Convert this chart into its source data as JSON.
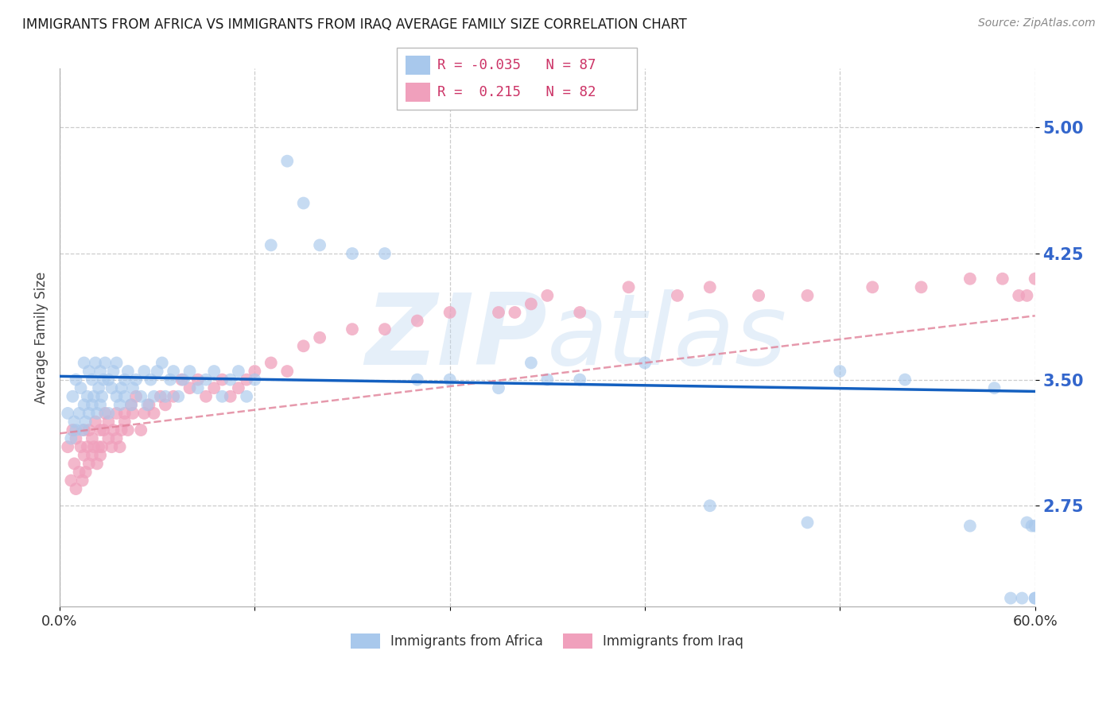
{
  "title": "IMMIGRANTS FROM AFRICA VS IMMIGRANTS FROM IRAQ AVERAGE FAMILY SIZE CORRELATION CHART",
  "source": "Source: ZipAtlas.com",
  "ylabel": "Average Family Size",
  "yticks": [
    2.75,
    3.5,
    4.25,
    5.0
  ],
  "xlim": [
    0.0,
    0.6
  ],
  "ylim": [
    2.15,
    5.35
  ],
  "africa_R": -0.035,
  "africa_N": 87,
  "iraq_R": 0.215,
  "iraq_N": 82,
  "africa_color": "#a8c8ec",
  "iraq_color": "#f0a0bc",
  "africa_line_color": "#1460c0",
  "iraq_line_color": "#e08098",
  "title_color": "#1a1a1a",
  "axis_tick_color": "#3366cc",
  "watermark": "ZIPatlas",
  "africa_x": [
    0.005,
    0.007,
    0.008,
    0.009,
    0.01,
    0.01,
    0.012,
    0.013,
    0.014,
    0.015,
    0.015,
    0.016,
    0.017,
    0.018,
    0.018,
    0.02,
    0.02,
    0.021,
    0.022,
    0.023,
    0.024,
    0.025,
    0.025,
    0.026,
    0.027,
    0.028,
    0.03,
    0.03,
    0.032,
    0.033,
    0.035,
    0.035,
    0.037,
    0.038,
    0.04,
    0.04,
    0.042,
    0.044,
    0.045,
    0.047,
    0.05,
    0.052,
    0.054,
    0.056,
    0.058,
    0.06,
    0.063,
    0.065,
    0.068,
    0.07,
    0.073,
    0.076,
    0.08,
    0.085,
    0.09,
    0.095,
    0.1,
    0.105,
    0.11,
    0.115,
    0.12,
    0.13,
    0.14,
    0.15,
    0.16,
    0.18,
    0.2,
    0.22,
    0.24,
    0.27,
    0.29,
    0.3,
    0.32,
    0.36,
    0.4,
    0.46,
    0.48,
    0.52,
    0.56,
    0.575,
    0.585,
    0.592,
    0.595,
    0.598,
    0.6,
    0.6,
    0.6
  ],
  "africa_y": [
    3.3,
    3.15,
    3.4,
    3.25,
    3.2,
    3.5,
    3.3,
    3.45,
    3.2,
    3.35,
    3.6,
    3.25,
    3.4,
    3.3,
    3.55,
    3.35,
    3.5,
    3.4,
    3.6,
    3.3,
    3.45,
    3.35,
    3.55,
    3.4,
    3.5,
    3.6,
    3.3,
    3.5,
    3.45,
    3.55,
    3.4,
    3.6,
    3.35,
    3.45,
    3.4,
    3.5,
    3.55,
    3.35,
    3.45,
    3.5,
    3.4,
    3.55,
    3.35,
    3.5,
    3.4,
    3.55,
    3.6,
    3.4,
    3.5,
    3.55,
    3.4,
    3.5,
    3.55,
    3.45,
    3.5,
    3.55,
    3.4,
    3.5,
    3.55,
    3.4,
    3.5,
    4.3,
    4.8,
    4.55,
    4.3,
    4.25,
    4.25,
    3.5,
    3.5,
    3.45,
    3.6,
    3.5,
    3.5,
    3.6,
    2.75,
    2.65,
    3.55,
    3.5,
    2.63,
    3.45,
    2.2,
    2.2,
    2.65,
    2.63,
    2.2,
    2.2,
    2.63
  ],
  "iraq_x": [
    0.005,
    0.007,
    0.008,
    0.009,
    0.01,
    0.01,
    0.012,
    0.013,
    0.014,
    0.015,
    0.015,
    0.016,
    0.017,
    0.018,
    0.018,
    0.02,
    0.02,
    0.021,
    0.022,
    0.023,
    0.024,
    0.025,
    0.025,
    0.026,
    0.027,
    0.028,
    0.03,
    0.03,
    0.032,
    0.033,
    0.035,
    0.035,
    0.037,
    0.038,
    0.04,
    0.04,
    0.042,
    0.044,
    0.045,
    0.047,
    0.05,
    0.052,
    0.055,
    0.058,
    0.062,
    0.065,
    0.07,
    0.075,
    0.08,
    0.085,
    0.09,
    0.095,
    0.1,
    0.105,
    0.11,
    0.115,
    0.12,
    0.13,
    0.14,
    0.15,
    0.16,
    0.18,
    0.2,
    0.22,
    0.24,
    0.27,
    0.28,
    0.29,
    0.3,
    0.32,
    0.35,
    0.38,
    0.4,
    0.43,
    0.46,
    0.5,
    0.53,
    0.56,
    0.58,
    0.59,
    0.595,
    0.6
  ],
  "iraq_y": [
    3.1,
    2.9,
    3.2,
    3.0,
    2.85,
    3.15,
    2.95,
    3.1,
    2.9,
    3.05,
    3.2,
    2.95,
    3.1,
    3.0,
    3.2,
    3.05,
    3.15,
    3.1,
    3.25,
    3.0,
    3.1,
    3.05,
    3.2,
    3.1,
    3.2,
    3.3,
    3.15,
    3.25,
    3.1,
    3.2,
    3.15,
    3.3,
    3.1,
    3.2,
    3.25,
    3.3,
    3.2,
    3.35,
    3.3,
    3.4,
    3.2,
    3.3,
    3.35,
    3.3,
    3.4,
    3.35,
    3.4,
    3.5,
    3.45,
    3.5,
    3.4,
    3.45,
    3.5,
    3.4,
    3.45,
    3.5,
    3.55,
    3.6,
    3.55,
    3.7,
    3.75,
    3.8,
    3.8,
    3.85,
    3.9,
    3.9,
    3.9,
    3.95,
    4.0,
    3.9,
    4.05,
    4.0,
    4.05,
    4.0,
    4.0,
    4.05,
    4.05,
    4.1,
    4.1,
    4.0,
    4.0,
    4.1
  ]
}
